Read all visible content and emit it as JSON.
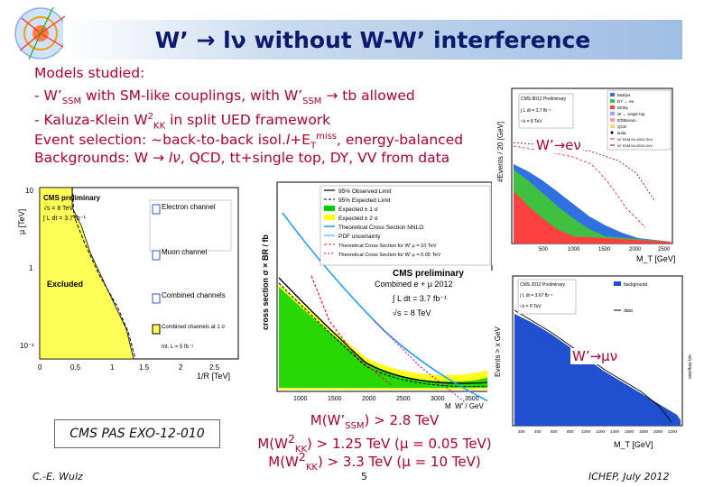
{
  "slide": {
    "title": "W’ → lν without W-W’ interference",
    "models": {
      "heading": "Models studied:",
      "line1_pre": "- W’",
      "line1_sub": "SSM",
      "line1_mid": " with SM-like couplings, with W’",
      "line1_sub2": "SSM",
      "line1_post": " → tb allowed",
      "line2_pre": "- Kaluza-Klein W",
      "line2_sup": "2",
      "line2_sub": "KK",
      "line2_post": " in split UED framework",
      "line3_label": "Event selection: ",
      "line3_text_a": "~back-to-back isol.",
      "line3_l": "l",
      "line3_text_b": "+E",
      "line3_subT": "T",
      "line3_sup": "miss",
      "line3_text_c": ", energy-balanced",
      "line4_label": "Backgrounds: ",
      "line4_a": "W → ",
      "line4_lnu": "lν",
      "line4_b": ", QCD, tt+single top, DY, VV from data"
    },
    "w_e_label": "W’→eν",
    "w_mu_label": "W’→μν",
    "pas": "CMS PAS EXO-12-010",
    "ann": {
      "l1_a": "M(W’",
      "l1_sub": "SSM",
      "l1_b": ") > 2.8 TeV",
      "l2_a": "M(W",
      "l2_sup": "2",
      "l2_sub": "KK",
      "l2_b": ") > 1.25 TeV (μ = 0.05 TeV)",
      "l3_a": "M(W",
      "l3_sup": "2",
      "l3_sub": "KK",
      "l3_b": ") > 3.3 TeV (μ = 10 TeV)"
    },
    "footer": {
      "author": "C.-E. Wulz",
      "page": "5",
      "conf": "ICHEP, July 2012"
    }
  },
  "plot_ued": {
    "ylabel": "μ [TeV]",
    "xlabel": "1/R [TeV]",
    "yticks": [
      "10",
      "1",
      "10⁻¹"
    ],
    "xticks": [
      "0",
      "0.5",
      "1",
      "1.5",
      "2",
      "2.5"
    ],
    "cms": "CMS preliminary",
    "energy": "√s = 8 TeV",
    "lumi": "∫ L dt = 3.7 fb⁻¹",
    "electron": "Electron channel",
    "muon": "Muon channel",
    "combined": "Combined channels",
    "combined2": "Combined channels at 1 σ",
    "excluded": "Excluded",
    "intl": "Int. L = 5 fb⁻¹"
  },
  "plot_xsec": {
    "ylabel": "cross section σ × BR / fb",
    "xlabel": "M_W’ / GeV",
    "xticks": [
      "1000",
      "1500",
      "2000",
      "2500",
      "3000",
      "3500"
    ],
    "cms": "CMS preliminary",
    "combined": "Combined e + μ  2012",
    "lumi": "∫ L dt = 3.7 fb⁻¹",
    "energy": "√s = 8 TeV",
    "legend": [
      "95% Observed Limit",
      "95% Expected Limit",
      "Expected ± 1 σ",
      "Expected ± 2 σ",
      "Theoretical Cross Section NNLO",
      "PDF uncertainty",
      "Theoretical Cross Section for W’ μ = 10 TeV",
      "Theoretical Cross Section for W’ μ = 0.05 TeV"
    ]
  },
  "plot_e": {
    "ylabel": "#Events / 20 [GeV]",
    "xlabel": "M_T [GeV]",
    "xticks": [
      "500",
      "1000",
      "1500",
      "2000",
      "2500"
    ],
    "header": "CMS 8012 Preliminary",
    "lumi": "∫ L dt = 3.7 fb⁻¹",
    "energy": "√s = 8 TeV",
    "legend": [
      "Multijet",
      "DY → ee",
      "W/Wγ",
      "W → single top",
      "tt/DiBoson",
      "QCD",
      "Data",
      "W’ SSM M=1500 GeV",
      "W’ SSM M=2500 GeV"
    ]
  },
  "plot_mu": {
    "ylabel": "Events > x GeV",
    "xlabel": "M_T [GeV]",
    "xticks": [
      "200",
      "400",
      "600",
      "800",
      "1000",
      "1200",
      "1400",
      "1600",
      "1800",
      "2000",
      "2200"
    ],
    "header": "CMS 2012 Preliminary",
    "lumi": "∫ L dt = 3.67 fb⁻¹",
    "energy": "√s = 8 TeV",
    "legend": [
      "background",
      "data"
    ],
    "side": "overflow bin"
  },
  "colors": {
    "title": "#0c1a6e",
    "accent": "#b0002d",
    "excluded": "#ffff55",
    "band1": "#00d000",
    "band2": "#ffff00",
    "bkg": "#2050d0"
  }
}
